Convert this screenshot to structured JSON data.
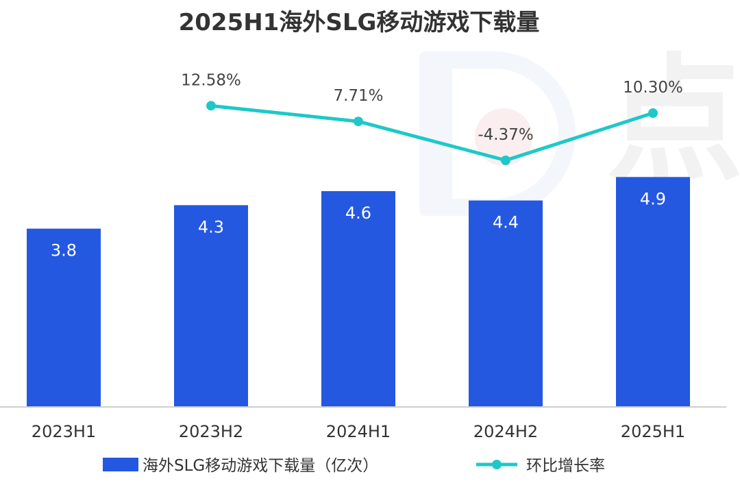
{
  "chart_data": {
    "type": "bar",
    "title": "2025H1海外SLG移动游戏下载量",
    "categories": [
      "2023H1",
      "2023H2",
      "2024H1",
      "2024H2",
      "2025H1"
    ],
    "series": [
      {
        "name": "海外SLG移动游戏下载量（亿次）",
        "type": "bar",
        "values": [
          3.8,
          4.3,
          4.6,
          4.4,
          4.9
        ],
        "labels": [
          "3.8",
          "4.3",
          "4.6",
          "4.4",
          "4.9"
        ],
        "color": "#2458E0"
      },
      {
        "name": "环比增长率",
        "type": "line",
        "values": [
          null,
          12.58,
          7.71,
          -4.37,
          10.3
        ],
        "labels": [
          "",
          "12.58%",
          "7.71%",
          "-4.37%",
          "10.30%"
        ],
        "color": "#1EC8C8"
      }
    ],
    "ylim": [
      0,
      5.5
    ],
    "y2lim": [
      -35,
      17
    ],
    "grid": false,
    "legend": "bottom"
  },
  "watermark": {
    "text": "点"
  }
}
